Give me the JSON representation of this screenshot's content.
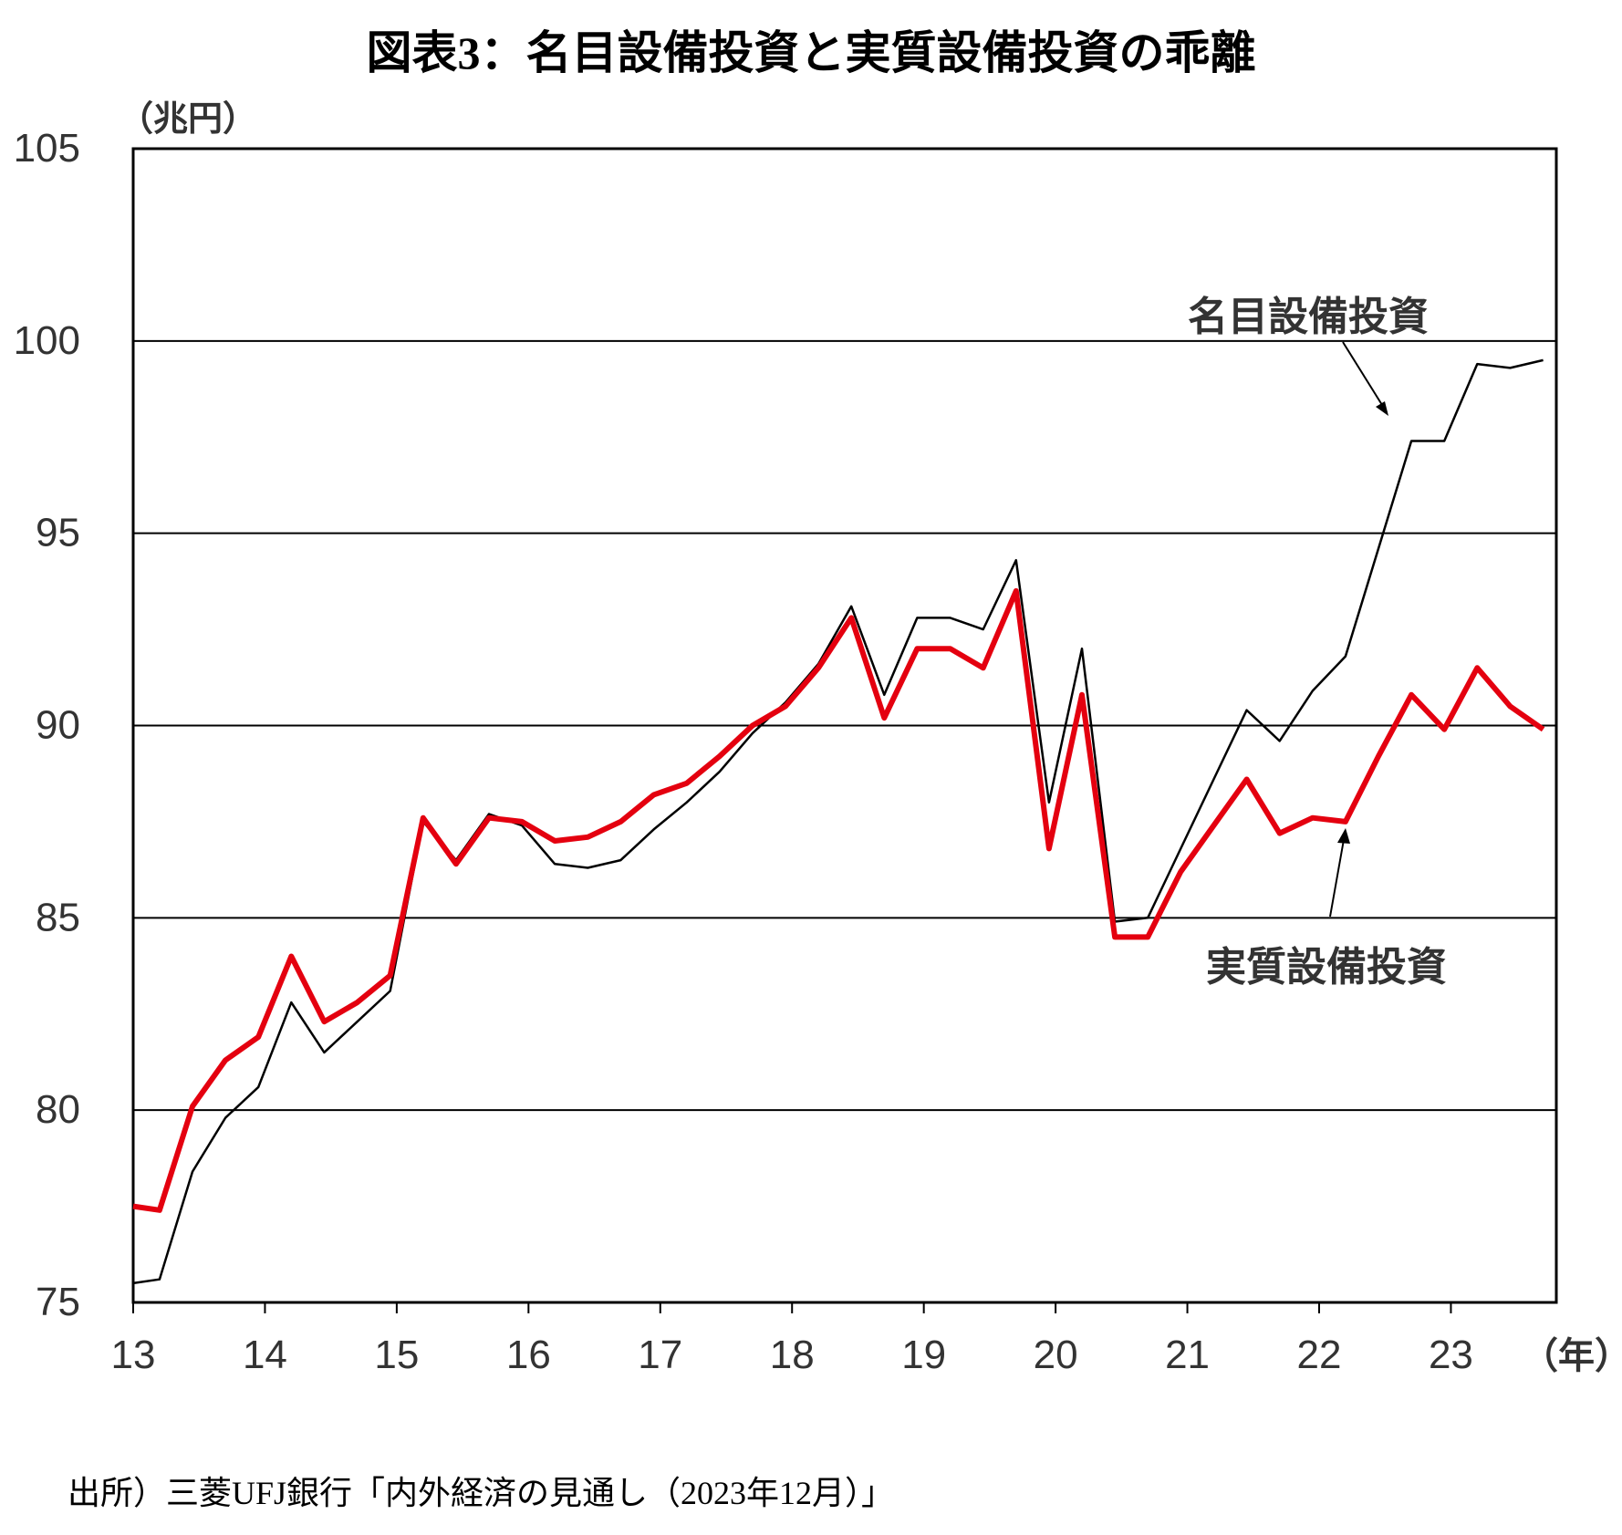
{
  "title": "図表3：名目設備投資と実質設備投資の乖離",
  "source_note": "出所）三菱UFJ銀行「内外経済の見通し（2023年12月）」",
  "chart_data": {
    "type": "line",
    "title": "図表3：名目設備投資と実質設備投資の乖離",
    "ylabel": "（兆円）",
    "xlabel": "（年）",
    "ylim": [
      75,
      105
    ],
    "yticks": [
      75,
      80,
      85,
      90,
      95,
      100,
      105
    ],
    "xlim": [
      13,
      23.8
    ],
    "xticks": [
      13,
      14,
      15,
      16,
      17,
      18,
      19,
      20,
      21,
      22,
      23
    ],
    "xtick_labels": [
      "13",
      "14",
      "15",
      "16",
      "17",
      "18",
      "19",
      "20",
      "21",
      "22",
      "23"
    ],
    "grid": "horizontal",
    "x": [
      13.0,
      13.2,
      13.45,
      13.7,
      13.95,
      14.2,
      14.45,
      14.7,
      14.95,
      15.2,
      15.45,
      15.7,
      15.95,
      16.2,
      16.45,
      16.7,
      16.95,
      17.2,
      17.45,
      17.7,
      17.95,
      18.2,
      18.45,
      18.7,
      18.95,
      19.2,
      19.45,
      19.7,
      19.95,
      20.2,
      20.45,
      20.7,
      20.95,
      21.2,
      21.45,
      21.7,
      21.95,
      22.2,
      22.45,
      22.7,
      22.95,
      23.2,
      23.45,
      23.7
    ],
    "series": [
      {
        "name": "名目設備投資",
        "color": "#000000",
        "values": [
          75.5,
          75.6,
          78.4,
          79.8,
          80.6,
          82.8,
          81.5,
          82.3,
          83.1,
          87.5,
          86.5,
          87.7,
          87.4,
          86.4,
          86.3,
          86.5,
          87.3,
          88.0,
          88.8,
          89.8,
          90.6,
          91.6,
          93.1,
          90.8,
          92.8,
          92.8,
          92.5,
          94.3,
          88.0,
          92.0,
          84.9,
          85.0,
          86.8,
          88.6,
          90.4,
          89.6,
          90.9,
          91.8,
          94.6,
          97.4,
          97.4,
          99.4,
          99.3,
          99.5
        ]
      },
      {
        "name": "実質設備投資",
        "color": "#e4000f",
        "values": [
          77.5,
          77.4,
          80.1,
          81.3,
          81.9,
          84.0,
          82.3,
          82.8,
          83.5,
          87.6,
          86.4,
          87.6,
          87.5,
          87.0,
          87.1,
          87.5,
          88.2,
          88.5,
          89.2,
          90.0,
          90.5,
          91.5,
          92.8,
          90.2,
          92.0,
          92.0,
          91.5,
          93.5,
          86.8,
          90.8,
          84.5,
          84.5,
          86.2,
          87.4,
          88.6,
          87.2,
          87.6,
          87.5,
          89.2,
          90.8,
          89.9,
          91.5,
          90.5,
          89.9
        ]
      }
    ],
    "annotations": [
      {
        "text": "名目設備投資",
        "series": "名目設備投資"
      },
      {
        "text": "実質設備投資",
        "series": "実質設備投資"
      }
    ]
  }
}
